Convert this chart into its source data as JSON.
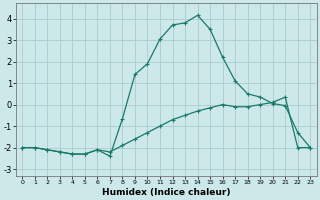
{
  "xlabel": "Humidex (Indice chaleur)",
  "background_color": "#cce8e8",
  "line_color": "#1a7a6a",
  "grid_color": "#aacccc",
  "xlim": [
    -0.5,
    23.5
  ],
  "ylim": [
    -3.3,
    4.7
  ],
  "xticks": [
    0,
    1,
    2,
    3,
    4,
    5,
    6,
    7,
    8,
    9,
    10,
    11,
    12,
    13,
    14,
    15,
    16,
    17,
    18,
    19,
    20,
    21,
    22,
    23
  ],
  "yticks": [
    -3,
    -2,
    -1,
    0,
    1,
    2,
    3,
    4
  ],
  "curve1_x": [
    0,
    1,
    2,
    3,
    4,
    5,
    6,
    7,
    8,
    9,
    10,
    11,
    12,
    13,
    14,
    15,
    16,
    17,
    18,
    19,
    20,
    21,
    22,
    23
  ],
  "curve1_y": [
    -2.0,
    -2.0,
    -2.1,
    -2.2,
    -2.3,
    -2.3,
    -2.1,
    -2.2,
    -1.9,
    -1.6,
    -1.3,
    -1.0,
    -0.7,
    -0.5,
    -0.3,
    -0.15,
    0.0,
    -0.1,
    -0.1,
    0.0,
    0.1,
    0.35,
    -2.0,
    -2.0
  ],
  "curve2_x": [
    0,
    1,
    2,
    3,
    4,
    5,
    6,
    7,
    8,
    9,
    10,
    11,
    12,
    13,
    14,
    15,
    16,
    17,
    18,
    19,
    20,
    21,
    22,
    23
  ],
  "curve2_y": [
    -2.0,
    -2.0,
    -2.1,
    -2.2,
    -2.3,
    -2.3,
    -2.1,
    -2.4,
    -0.65,
    1.4,
    1.9,
    3.05,
    3.7,
    3.8,
    4.15,
    3.5,
    2.2,
    1.1,
    0.5,
    0.35,
    0.05,
    -0.05,
    -1.3,
    -2.0
  ]
}
